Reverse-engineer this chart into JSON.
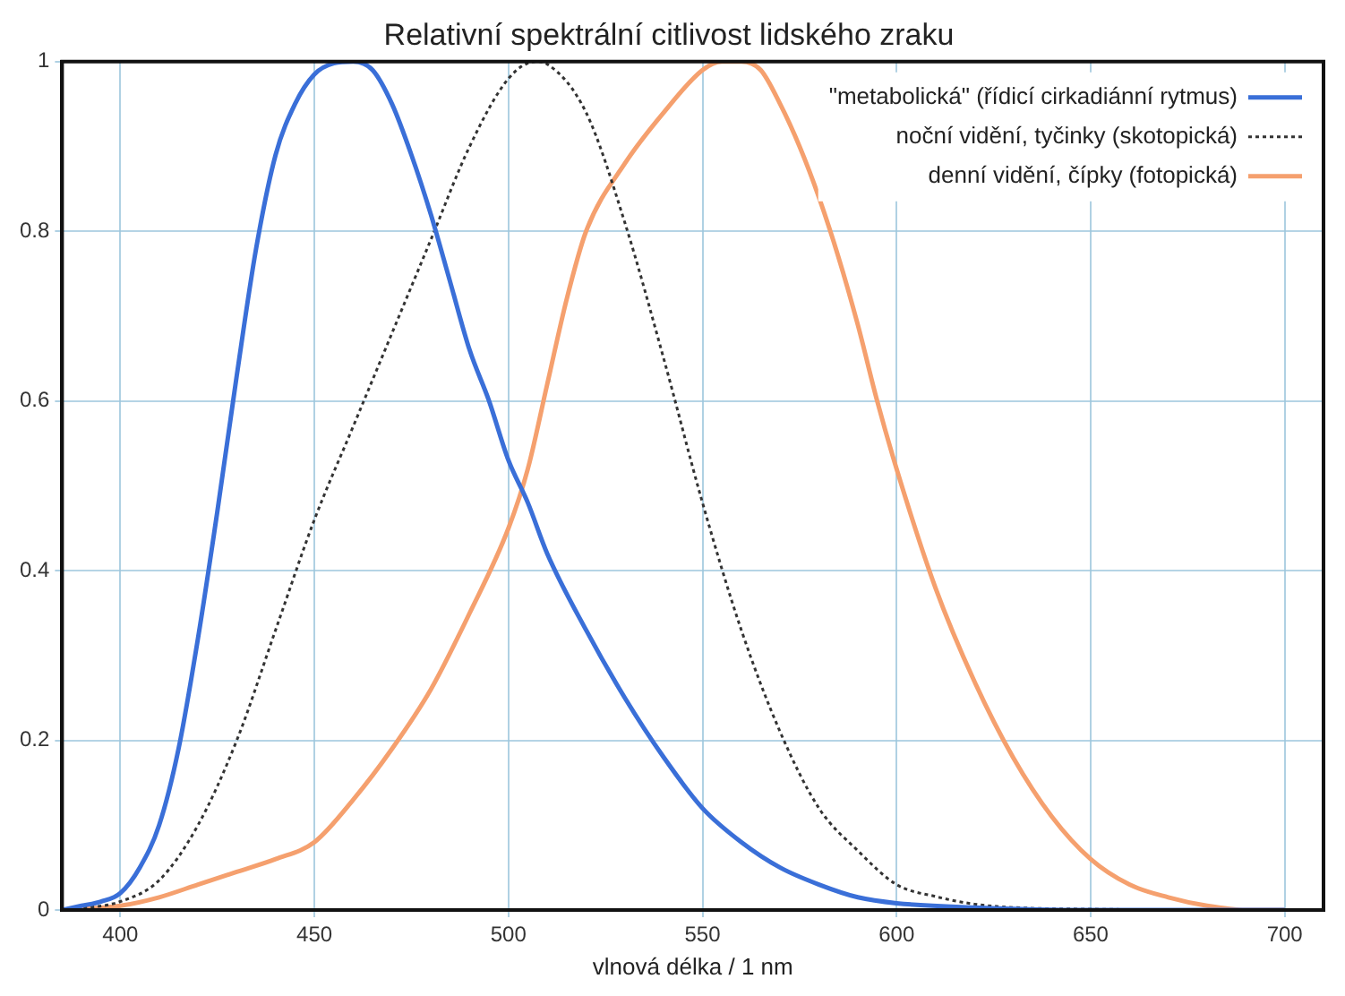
{
  "chart_data": {
    "type": "line",
    "title": "Relativní spektrální citlivost lidského zraku",
    "xlabel": "vlnová délka / 1 nm",
    "xlim": [
      385,
      710
    ],
    "xticks": [
      400,
      450,
      500,
      550,
      600,
      650,
      700
    ],
    "ylim": [
      0,
      1
    ],
    "yticks": [
      0,
      0.2,
      0.4,
      0.6,
      0.8,
      1
    ],
    "grid": true,
    "legend": "top right",
    "marker": "none",
    "series": [
      {
        "name": "\"metabolická\" (řídicí cirkadiánní rytmus)",
        "color": "#3a6fd8",
        "line_style": "solid",
        "x": [
          385,
          390,
          395,
          400,
          405,
          410,
          415,
          420,
          425,
          430,
          435,
          440,
          445,
          450,
          455,
          460,
          465,
          470,
          475,
          480,
          485,
          490,
          495,
          500,
          505,
          510,
          520,
          530,
          540,
          550,
          560,
          570,
          580,
          590,
          600,
          620,
          650,
          700
        ],
        "values": [
          0,
          0.005,
          0.01,
          0.02,
          0.05,
          0.1,
          0.19,
          0.32,
          0.47,
          0.63,
          0.78,
          0.89,
          0.95,
          0.985,
          0.998,
          1,
          0.99,
          0.95,
          0.89,
          0.82,
          0.74,
          0.66,
          0.6,
          0.53,
          0.48,
          0.42,
          0.33,
          0.25,
          0.18,
          0.12,
          0.08,
          0.05,
          0.03,
          0.015,
          0.008,
          0.003,
          0,
          0
        ]
      },
      {
        "name": "noční vidění, tyčinky (skotopická)",
        "color": "#333333",
        "line_style": "dotted",
        "x": [
          385,
          390,
          400,
          410,
          420,
          430,
          440,
          450,
          460,
          470,
          480,
          490,
          500,
          507,
          510,
          520,
          530,
          540,
          550,
          560,
          570,
          580,
          590,
          600,
          610,
          620,
          630,
          650,
          700
        ],
        "values": [
          0,
          0.002,
          0.01,
          0.035,
          0.1,
          0.2,
          0.33,
          0.46,
          0.57,
          0.68,
          0.79,
          0.9,
          0.98,
          1,
          0.997,
          0.94,
          0.81,
          0.65,
          0.48,
          0.33,
          0.21,
          0.12,
          0.07,
          0.03,
          0.016,
          0.007,
          0.003,
          0.001,
          0
        ]
      },
      {
        "name": "denní vidění, čípky (fotopická)",
        "color": "#f5a06e",
        "line_style": "solid",
        "x": [
          385,
          400,
          410,
          420,
          430,
          440,
          450,
          460,
          470,
          480,
          490,
          500,
          505,
          510,
          515,
          520,
          530,
          540,
          550,
          555,
          560,
          565,
          570,
          575,
          580,
          585,
          590,
          595,
          600,
          610,
          620,
          630,
          640,
          650,
          660,
          670,
          680,
          690,
          700
        ],
        "values": [
          0,
          0.005,
          0.015,
          0.03,
          0.045,
          0.06,
          0.08,
          0.13,
          0.19,
          0.26,
          0.35,
          0.45,
          0.52,
          0.62,
          0.72,
          0.8,
          0.88,
          0.94,
          0.99,
          1,
          1,
          0.99,
          0.95,
          0.9,
          0.84,
          0.77,
          0.69,
          0.6,
          0.52,
          0.38,
          0.27,
          0.18,
          0.11,
          0.06,
          0.03,
          0.015,
          0.005,
          0,
          0
        ]
      }
    ]
  }
}
